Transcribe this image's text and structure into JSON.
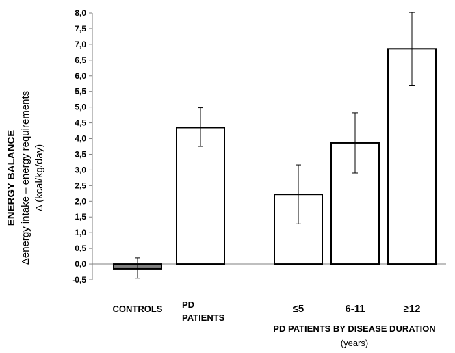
{
  "chart_data": {
    "type": "bar",
    "ylabel": {
      "line1": "ENERGY BALANCE",
      "line2": "Δenergy intake – energy requirements",
      "line3": "Δ (kcal/kg/day)"
    },
    "ylim": [
      -0.5,
      8.0
    ],
    "y_ticks": [
      {
        "v": -0.5,
        "label": "-0,5"
      },
      {
        "v": 0.0,
        "label": "0,0"
      },
      {
        "v": 0.5,
        "label": "0,5"
      },
      {
        "v": 1.0,
        "label": "1,0"
      },
      {
        "v": 1.5,
        "label": "1,5"
      },
      {
        "v": 2.0,
        "label": "2,0"
      },
      {
        "v": 2.5,
        "label": "2,5"
      },
      {
        "v": 3.0,
        "label": "3,0"
      },
      {
        "v": 3.5,
        "label": "3,5"
      },
      {
        "v": 4.0,
        "label": "4,0"
      },
      {
        "v": 4.5,
        "label": "4,5"
      },
      {
        "v": 5.0,
        "label": "5,0"
      },
      {
        "v": 5.5,
        "label": "5,5"
      },
      {
        "v": 6.0,
        "label": "6,0"
      },
      {
        "v": 6.5,
        "label": "6,5"
      },
      {
        "v": 7.0,
        "label": "7,0"
      },
      {
        "v": 7.5,
        "label": "7,5"
      },
      {
        "v": 8.0,
        "label": "8,0"
      }
    ],
    "bars": [
      {
        "label": "CONTROLS",
        "value": -0.15,
        "err_low": -0.45,
        "err_high": 0.2,
        "fill": "#808080"
      },
      {
        "label": "PD\nPATIENTS",
        "value": 4.35,
        "err_low": 3.75,
        "err_high": 4.98,
        "fill": "#ffffff"
      },
      {
        "label": "≤5",
        "value": 2.22,
        "err_low": 1.28,
        "err_high": 3.16,
        "fill": "#ffffff"
      },
      {
        "label": "6-11",
        "value": 3.86,
        "err_low": 2.9,
        "err_high": 4.82,
        "fill": "#ffffff"
      },
      {
        "label": "≥12",
        "value": 6.86,
        "err_low": 5.7,
        "err_high": 8.02,
        "fill": "#ffffff"
      }
    ],
    "group_label": {
      "title": "PD PATIENTS BY DISEASE DURATION",
      "subtitle": "(years)"
    },
    "grid": false
  }
}
